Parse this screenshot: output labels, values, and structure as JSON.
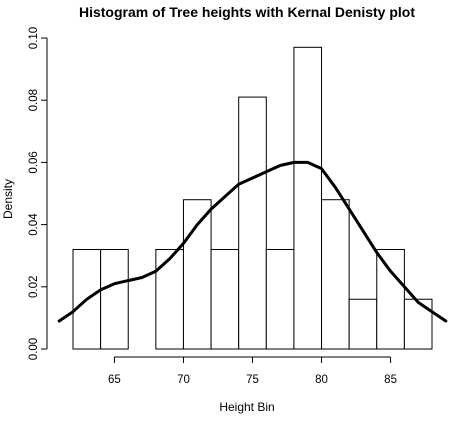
{
  "chart_data": {
    "type": "bar",
    "title": "Histogram of Tree heights with Kernal Denisty plot",
    "xlabel": "Height Bin",
    "ylabel": "Density",
    "xlim": [
      62,
      88
    ],
    "ylim": [
      0,
      0.1
    ],
    "x_ticks": [
      65,
      70,
      75,
      80,
      85
    ],
    "y_ticks": [
      0.0,
      0.02,
      0.04,
      0.06,
      0.08,
      0.1
    ],
    "y_tick_labels": [
      "0.00",
      "0.02",
      "0.04",
      "0.06",
      "0.08",
      "0.10"
    ],
    "bins": [
      {
        "x0": 62,
        "x1": 64,
        "density": 0.032
      },
      {
        "x0": 64,
        "x1": 66,
        "density": 0.032
      },
      {
        "x0": 66,
        "x1": 68,
        "density": 0.0
      },
      {
        "x0": 68,
        "x1": 70,
        "density": 0.032
      },
      {
        "x0": 70,
        "x1": 72,
        "density": 0.048
      },
      {
        "x0": 72,
        "x1": 74,
        "density": 0.032
      },
      {
        "x0": 74,
        "x1": 76,
        "density": 0.081
      },
      {
        "x0": 76,
        "x1": 78,
        "density": 0.032
      },
      {
        "x0": 78,
        "x1": 80,
        "density": 0.097
      },
      {
        "x0": 80,
        "x1": 82,
        "density": 0.048
      },
      {
        "x0": 82,
        "x1": 84,
        "density": 0.016
      },
      {
        "x0": 84,
        "x1": 86,
        "density": 0.032
      },
      {
        "x0": 86,
        "x1": 88,
        "density": 0.016
      }
    ],
    "density_curve": {
      "x": [
        61,
        62,
        63,
        64,
        65,
        66,
        67,
        68,
        69,
        70,
        71,
        72,
        73,
        74,
        75,
        76,
        77,
        78,
        79,
        80,
        81,
        82,
        83,
        84,
        85,
        86,
        87,
        88,
        89
      ],
      "y": [
        0.009,
        0.012,
        0.016,
        0.019,
        0.021,
        0.022,
        0.023,
        0.025,
        0.029,
        0.034,
        0.04,
        0.045,
        0.049,
        0.053,
        0.055,
        0.057,
        0.059,
        0.06,
        0.06,
        0.058,
        0.052,
        0.045,
        0.038,
        0.031,
        0.025,
        0.02,
        0.015,
        0.012,
        0.009
      ]
    },
    "grid": false,
    "legend": "none"
  }
}
